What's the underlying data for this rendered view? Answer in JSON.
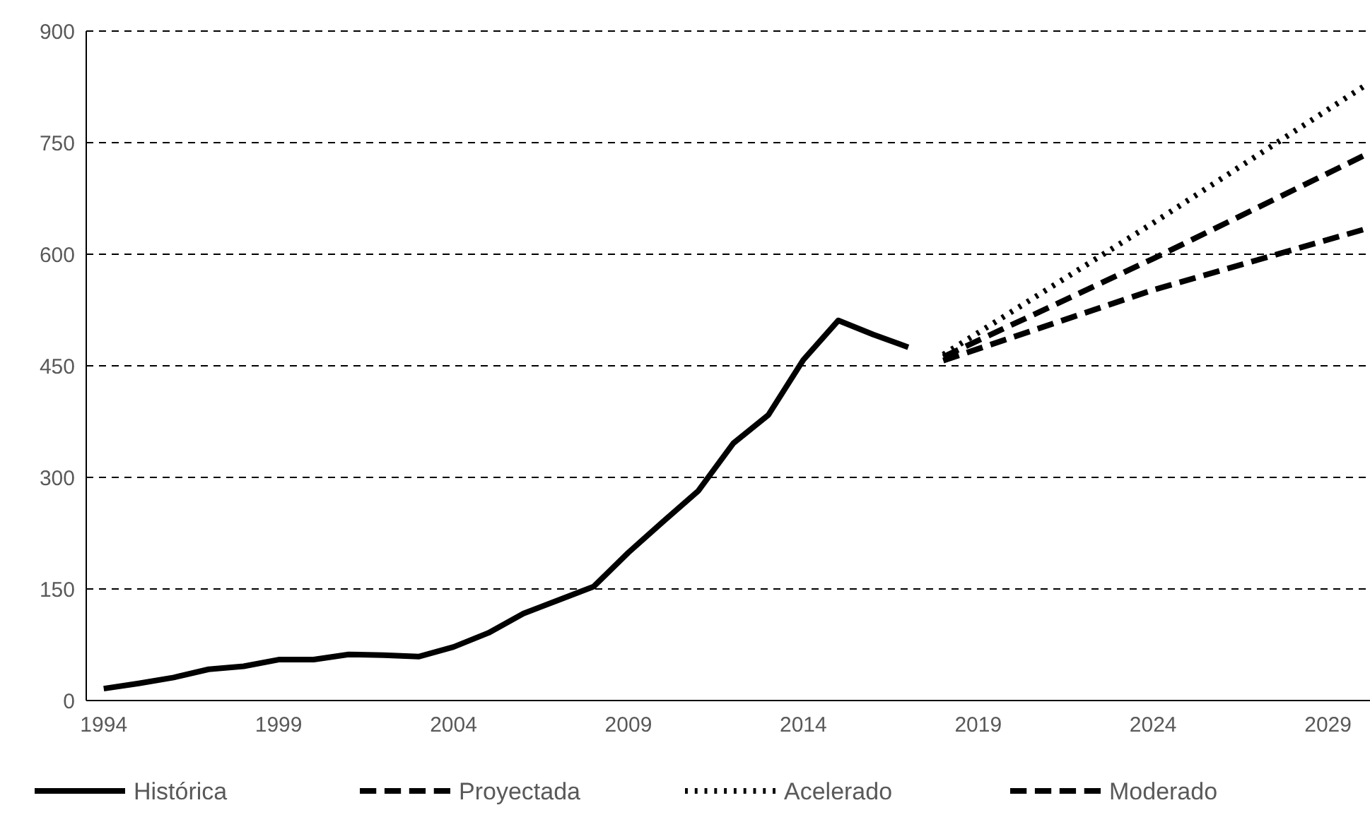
{
  "chart_data": {
    "type": "line",
    "xlim": [
      1993.5,
      2030.2
    ],
    "xticks": [
      1994,
      1999,
      2004,
      2009,
      2014,
      2019,
      2024,
      2029
    ],
    "ylim": [
      0,
      900
    ],
    "yticks": [
      0,
      150,
      300,
      450,
      600,
      750,
      900
    ],
    "grid": "y",
    "legend": "bottom",
    "series": [
      {
        "name": "Histórica",
        "color": "#000000",
        "line_style": "solid",
        "x": [
          1994,
          1995,
          1996,
          1997,
          1998,
          1999,
          2000,
          2001,
          2002,
          2003,
          2004,
          2005,
          2006,
          2007,
          2008,
          2009,
          2010,
          2011,
          2012,
          2013,
          2014,
          2015,
          2016,
          2017
        ],
        "values": [
          16,
          23,
          31,
          42,
          46,
          55,
          55,
          62,
          61,
          59,
          72,
          91,
          117,
          135,
          153,
          199,
          241,
          282,
          346,
          384,
          458,
          511,
          492,
          475
        ]
      },
      {
        "name": "Proyectada",
        "color": "#000000",
        "line_style": "dashed",
        "x": [
          2018,
          2024,
          2030
        ],
        "values": [
          462,
          594,
          732
        ]
      },
      {
        "name": "Acelerado",
        "color": "#000000",
        "line_style": "dotted",
        "x": [
          2018,
          2024,
          2030
        ],
        "values": [
          465,
          642,
          825
        ]
      },
      {
        "name": "Moderado",
        "color": "#000000",
        "line_style": "dashed",
        "x": [
          2018,
          2024,
          2030
        ],
        "values": [
          457,
          552,
          633
        ]
      }
    ]
  }
}
